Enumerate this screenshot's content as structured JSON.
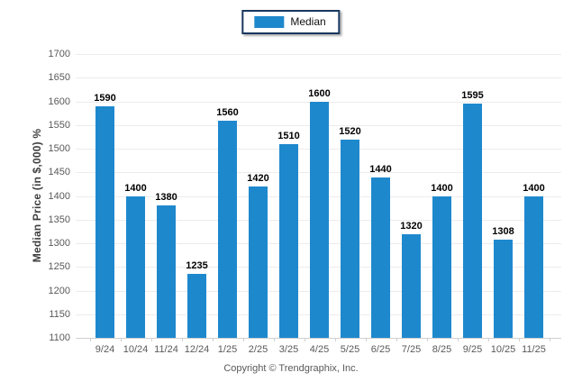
{
  "legend": {
    "label": "Median"
  },
  "footer": {
    "copyright": "Copyright © Trendgraphix, Inc."
  },
  "colors": {
    "bar": "#1e88cd",
    "legend_border": "#17375e",
    "grid": "#ececec",
    "axis_line": "#cfcfcf",
    "tick_text": "#595959",
    "value_label": "#000000"
  },
  "chart_data": {
    "type": "bar",
    "title": "",
    "xlabel": "",
    "ylabel": "Median Price (in $,000) %",
    "categories": [
      "9/24",
      "10/24",
      "11/24",
      "12/24",
      "1/25",
      "2/25",
      "3/25",
      "4/25",
      "5/25",
      "6/25",
      "7/25",
      "8/25",
      "9/25",
      "10/25",
      "11/25"
    ],
    "series": [
      {
        "name": "Median",
        "values": [
          1590,
          1400,
          1380,
          1235,
          1560,
          1420,
          1510,
          1600,
          1520,
          1440,
          1320,
          1400,
          1595,
          1308,
          1400
        ]
      }
    ],
    "ylim": [
      1100,
      1700
    ],
    "ytick_step": 50,
    "yticks": [
      1100,
      1150,
      1200,
      1250,
      1300,
      1350,
      1400,
      1450,
      1500,
      1550,
      1600,
      1650,
      1700
    ],
    "grid": true,
    "legend_position": "top-center",
    "bar_color": "#1e88cd",
    "value_labels": true
  }
}
